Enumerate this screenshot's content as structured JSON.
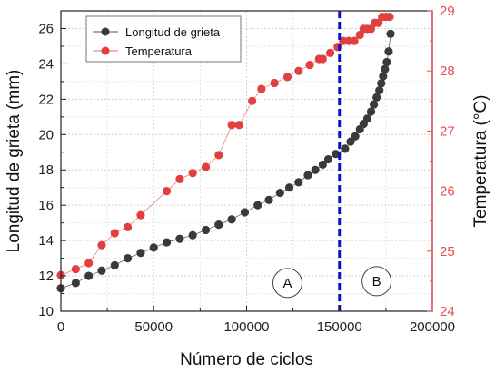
{
  "chart_data": {
    "type": "scatter",
    "xlabel": "Número de ciclos",
    "ylabel": "Longitud de grieta (mm)",
    "y2label": "Temperatura (°C)",
    "xlim": [
      0,
      200000
    ],
    "ylim": [
      10,
      27
    ],
    "y2lim": [
      24,
      29
    ],
    "x_ticks": [
      "0",
      "50000",
      "100000",
      "150000",
      "200000"
    ],
    "y_ticks": [
      "10",
      "12",
      "14",
      "16",
      "18",
      "20",
      "22",
      "24",
      "26"
    ],
    "y2_ticks": [
      "24",
      "25",
      "26",
      "27",
      "28",
      "29"
    ],
    "grid": true,
    "legend_position": "top-left",
    "vline": {
      "x": 150000,
      "color": "#1010cc",
      "style": "dashed"
    },
    "regions": [
      {
        "label": "A",
        "x": 122000,
        "y": 11.6
      },
      {
        "label": "B",
        "x": 170000,
        "y": 11.7
      }
    ],
    "series": [
      {
        "name": "Longitud de grieta",
        "axis": "left",
        "color": "#3a3a3a",
        "x": [
          0,
          8000,
          15000,
          22000,
          29000,
          36000,
          43000,
          50000,
          57000,
          64000,
          71000,
          78000,
          85000,
          92000,
          99000,
          106000,
          112000,
          118000,
          123000,
          128000,
          133000,
          137000,
          141000,
          144000,
          148000,
          153000,
          156000,
          158500,
          161000,
          163000,
          165000,
          167000,
          168500,
          170000,
          171500,
          172500,
          173500,
          174500,
          175500,
          176500,
          177500
        ],
        "y": [
          11.3,
          11.6,
          12.0,
          12.3,
          12.6,
          13.0,
          13.3,
          13.6,
          13.9,
          14.1,
          14.3,
          14.6,
          14.9,
          15.2,
          15.6,
          16.0,
          16.3,
          16.7,
          17.0,
          17.3,
          17.7,
          18.0,
          18.3,
          18.6,
          18.9,
          19.2,
          19.6,
          19.9,
          20.3,
          20.6,
          20.9,
          21.3,
          21.7,
          22.1,
          22.5,
          22.9,
          23.3,
          23.7,
          24.1,
          24.7,
          25.7
        ]
      },
      {
        "name": "Temperatura",
        "axis": "right",
        "color": "#e04040",
        "x": [
          0,
          8000,
          15000,
          22000,
          29000,
          36000,
          43000,
          57000,
          64000,
          71000,
          78000,
          85000,
          92000,
          96000,
          103000,
          108000,
          115000,
          122000,
          128000,
          134000,
          139000,
          141000,
          145000,
          149000,
          152000,
          155000,
          158000,
          161000,
          163000,
          165000,
          167000,
          169000,
          171000,
          173000,
          175000,
          177000
        ],
        "y": [
          24.6,
          24.7,
          24.8,
          25.1,
          25.3,
          25.4,
          25.6,
          26.0,
          26.2,
          26.3,
          26.4,
          26.6,
          27.1,
          27.1,
          27.5,
          27.7,
          27.8,
          27.9,
          28.0,
          28.1,
          28.2,
          28.2,
          28.3,
          28.4,
          28.5,
          28.5,
          28.5,
          28.6,
          28.7,
          28.7,
          28.7,
          28.8,
          28.8,
          28.9,
          28.9,
          28.9
        ]
      }
    ]
  }
}
